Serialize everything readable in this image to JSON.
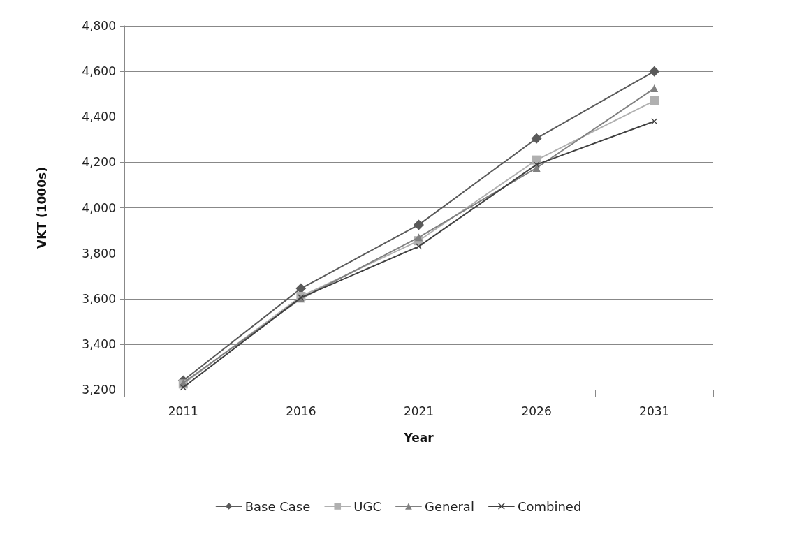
{
  "chart_data": {
    "type": "line",
    "xlabel": "Year",
    "ylabel": "VKT (1000s)",
    "categories": [
      "2011",
      "2016",
      "2021",
      "2026",
      "2031"
    ],
    "series": [
      {
        "name": "Base Case",
        "color": "#5a5a5a",
        "marker": "diamond",
        "values": [
          3240,
          3645,
          3925,
          4305,
          4600
        ]
      },
      {
        "name": "UGC",
        "color": "#b0b0b0",
        "marker": "square",
        "values": [
          3225,
          3610,
          3855,
          4210,
          4470
        ]
      },
      {
        "name": "General",
        "color": "#808080",
        "marker": "triangle",
        "values": [
          3230,
          3600,
          3870,
          4175,
          4525
        ]
      },
      {
        "name": "Combined",
        "color": "#404040",
        "marker": "cross",
        "values": [
          3210,
          3605,
          3830,
          4190,
          4380
        ]
      }
    ],
    "ylim": [
      3200,
      4800
    ],
    "yticks": [
      {
        "value": 3200,
        "label": "3,200"
      },
      {
        "value": 3400,
        "label": "3,400"
      },
      {
        "value": 3600,
        "label": "3,600"
      },
      {
        "value": 3800,
        "label": "3,800"
      },
      {
        "value": 4000,
        "label": "4,000"
      },
      {
        "value": 4200,
        "label": "4,200"
      },
      {
        "value": 4400,
        "label": "4,400"
      },
      {
        "value": 4600,
        "label": "4,600"
      },
      {
        "value": 4800,
        "label": "4,800"
      }
    ],
    "grid": "y",
    "legend": "bottom"
  }
}
